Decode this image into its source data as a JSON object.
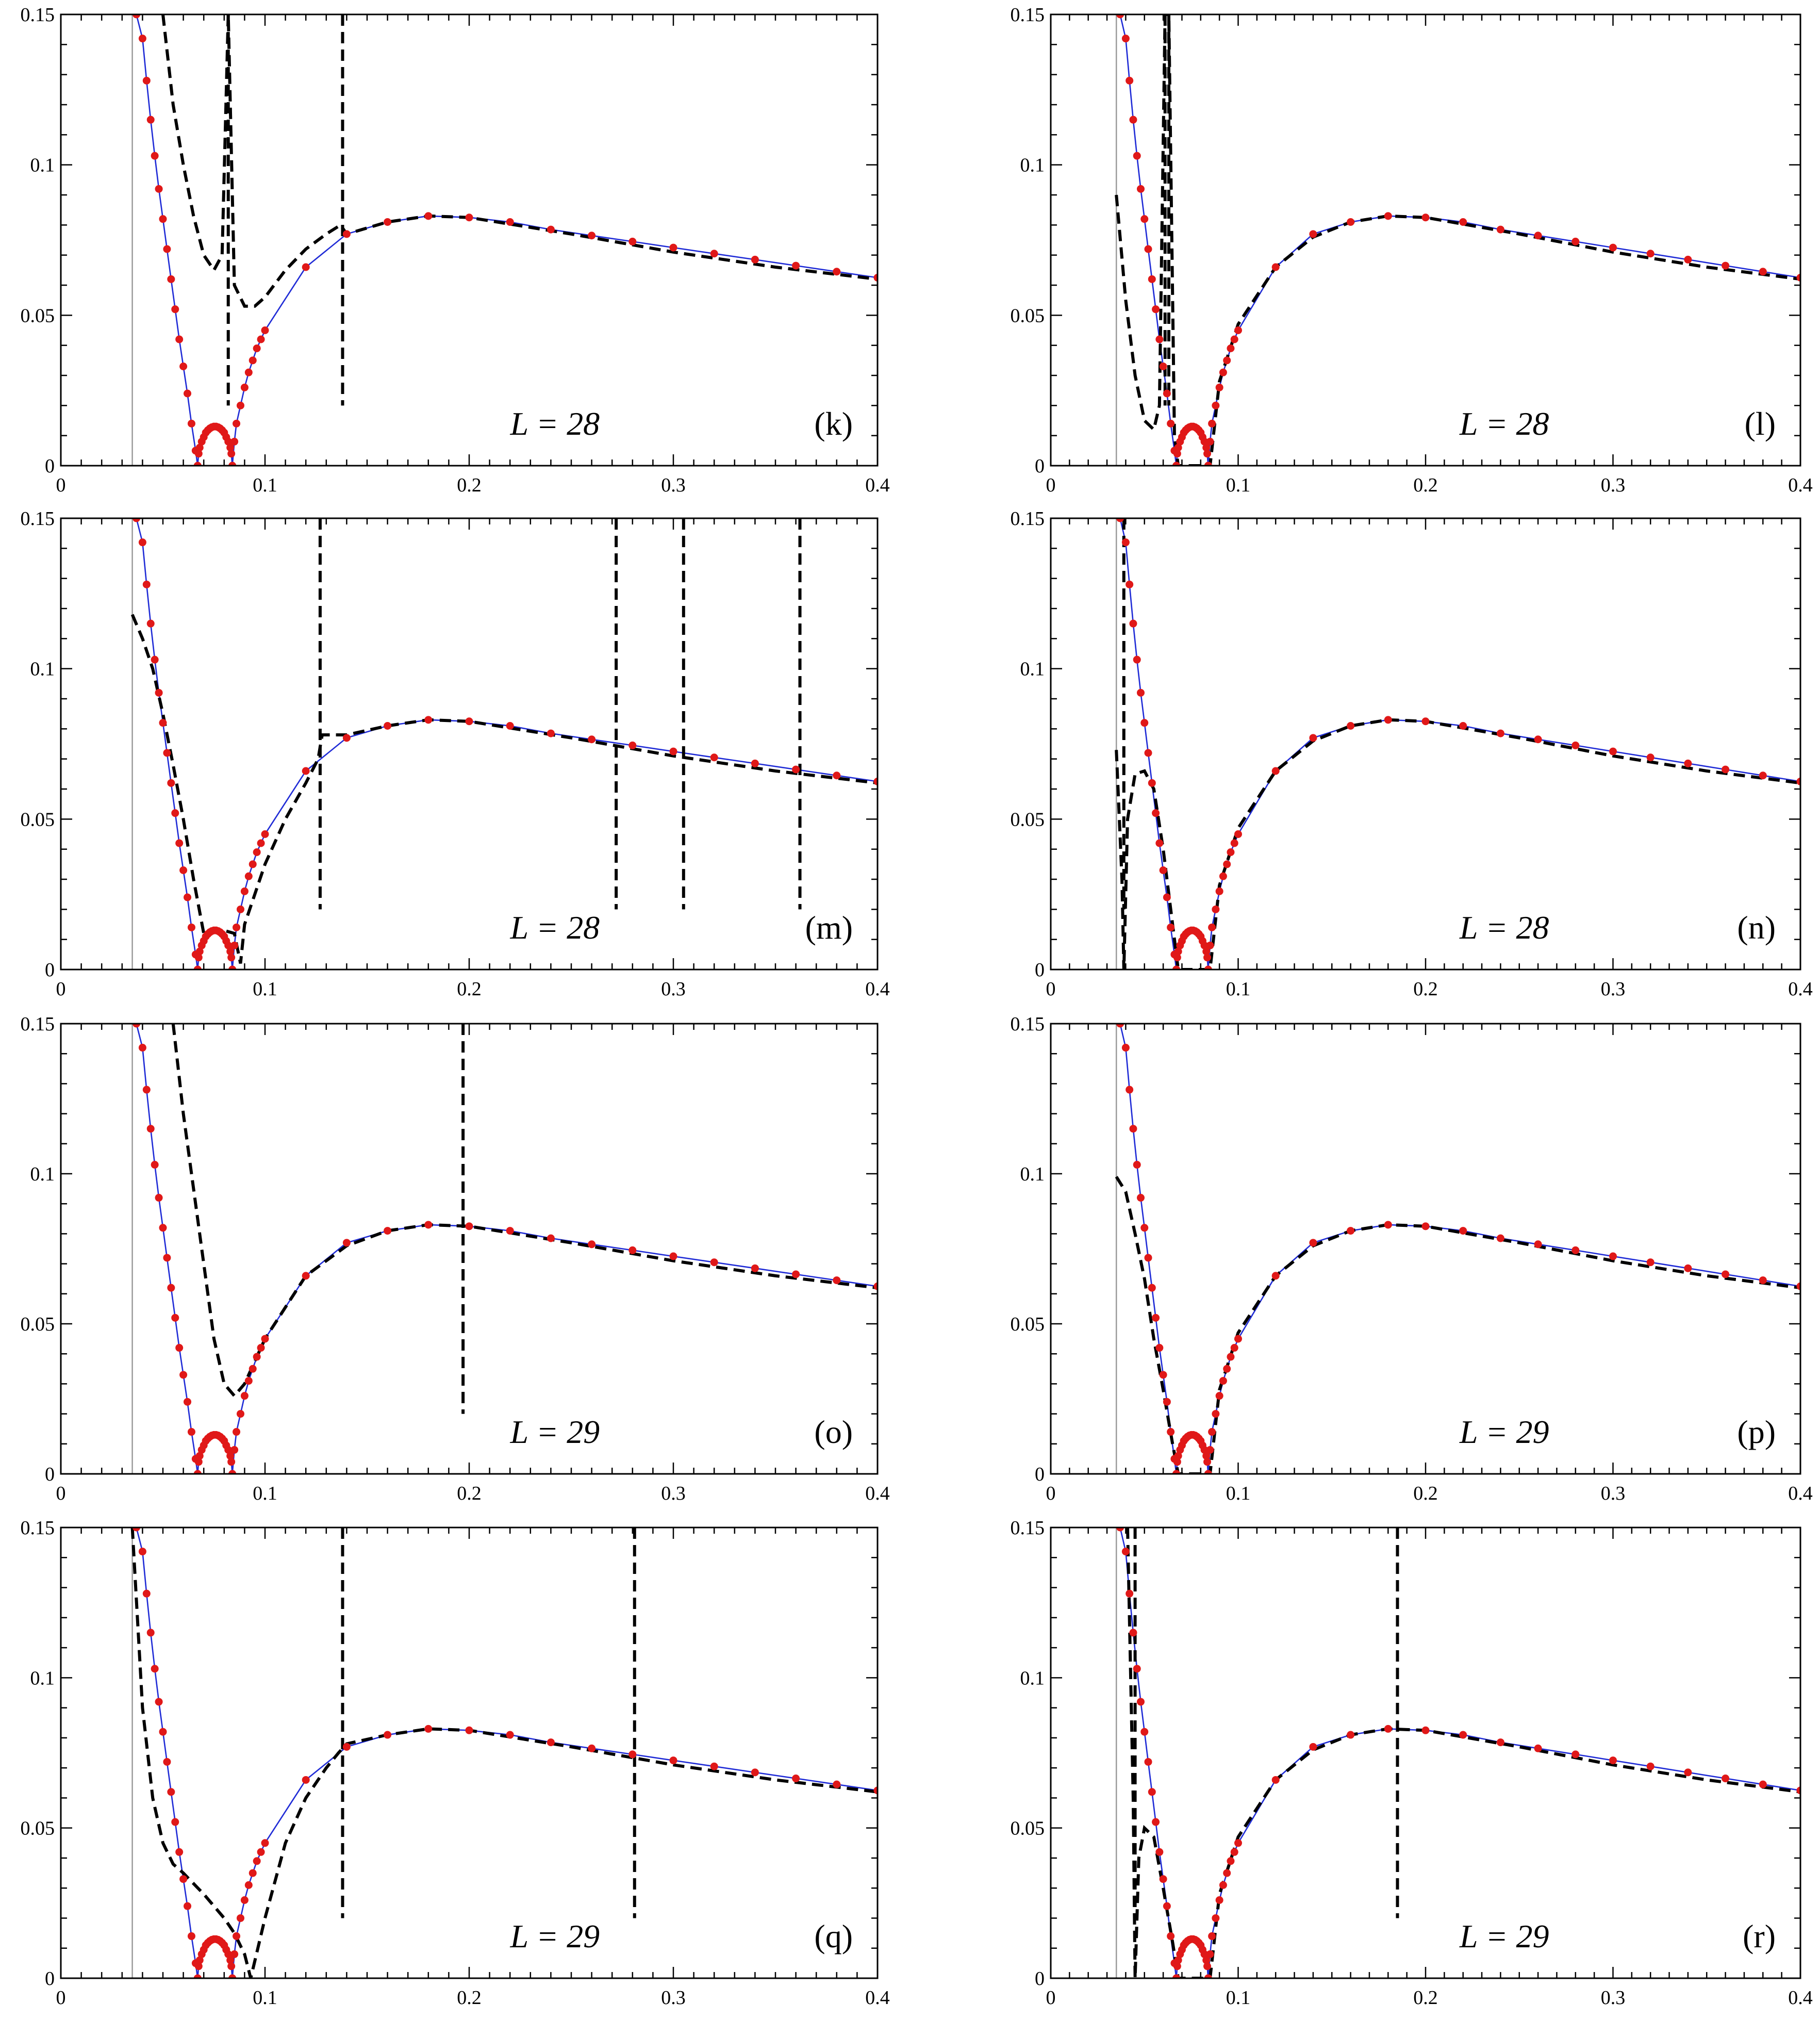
{
  "chart_data": [
    {
      "type": "line",
      "panel_label": "(k)",
      "annotation": "L = 28",
      "xlim": [
        0,
        0.4
      ],
      "ylim": [
        0,
        0.15
      ],
      "xticks": [
        "0",
        "0.1",
        "0.2",
        "0.3",
        "0.4"
      ],
      "yticks": [
        "0",
        "0.05",
        "0.1",
        "0.15"
      ],
      "reference_x": 0.035,
      "dashed_spikes": [
        0.082,
        0.138
      ],
      "dashed": [
        [
          0.05,
          0.15
        ],
        [
          0.055,
          0.12
        ],
        [
          0.06,
          0.1
        ],
        [
          0.065,
          0.083
        ],
        [
          0.07,
          0.07
        ],
        [
          0.075,
          0.065
        ],
        [
          0.079,
          0.07
        ],
        [
          0.082,
          0.15
        ],
        [
          0.085,
          0.06
        ],
        [
          0.09,
          0.053
        ],
        [
          0.095,
          0.053
        ],
        [
          0.1,
          0.056
        ],
        [
          0.11,
          0.065
        ],
        [
          0.12,
          0.072
        ],
        [
          0.13,
          0.077
        ],
        [
          0.137,
          0.08
        ],
        [
          0.14,
          0.077
        ],
        [
          0.16,
          0.081
        ],
        [
          0.18,
          0.083
        ],
        [
          0.2,
          0.0825
        ],
        [
          0.25,
          0.077
        ],
        [
          0.3,
          0.071
        ],
        [
          0.35,
          0.066
        ],
        [
          0.4,
          0.062
        ]
      ]
    },
    {
      "type": "line",
      "panel_label": "(l)",
      "annotation": "L = 28",
      "xlim": [
        0,
        0.4
      ],
      "ylim": [
        0,
        0.15
      ],
      "xticks": [
        "0",
        "0.1",
        "0.2",
        "0.3",
        "0.4"
      ],
      "yticks": [
        "0",
        "0.05",
        "0.1",
        "0.15"
      ],
      "reference_x": 0.035,
      "dashed_spikes": [
        0.061,
        0.063
      ],
      "dashed": [
        [
          0.035,
          0.09
        ],
        [
          0.04,
          0.055
        ],
        [
          0.045,
          0.03
        ],
        [
          0.05,
          0.015
        ],
        [
          0.055,
          0.012
        ],
        [
          0.058,
          0.02
        ],
        [
          0.061,
          0.15
        ],
        [
          0.063,
          0.15
        ],
        [
          0.066,
          0.01
        ],
        [
          0.068,
          0.0
        ],
        [
          0.085,
          0.0
        ],
        [
          0.09,
          0.028
        ],
        [
          0.1,
          0.047
        ],
        [
          0.12,
          0.066
        ],
        [
          0.14,
          0.076
        ],
        [
          0.16,
          0.081
        ],
        [
          0.18,
          0.083
        ],
        [
          0.2,
          0.0825
        ],
        [
          0.25,
          0.077
        ],
        [
          0.3,
          0.071
        ],
        [
          0.35,
          0.066
        ],
        [
          0.4,
          0.062
        ]
      ]
    },
    {
      "type": "line",
      "panel_label": "(m)",
      "annotation": "L = 28",
      "xlim": [
        0,
        0.4
      ],
      "ylim": [
        0,
        0.15
      ],
      "xticks": [
        "0",
        "0.1",
        "0.2",
        "0.3",
        "0.4"
      ],
      "yticks": [
        "0",
        "0.05",
        "0.1",
        "0.15"
      ],
      "reference_x": 0.035,
      "dashed_spikes": [
        0.127,
        0.272,
        0.305,
        0.362
      ],
      "dashed": [
        [
          0.035,
          0.118
        ],
        [
          0.04,
          0.11
        ],
        [
          0.045,
          0.1
        ],
        [
          0.05,
          0.085
        ],
        [
          0.055,
          0.068
        ],
        [
          0.06,
          0.05
        ],
        [
          0.065,
          0.03
        ],
        [
          0.07,
          0.012
        ],
        [
          0.075,
          0.013
        ],
        [
          0.08,
          0.013
        ],
        [
          0.085,
          0.012
        ],
        [
          0.088,
          0.002
        ],
        [
          0.09,
          0.015
        ],
        [
          0.1,
          0.035
        ],
        [
          0.11,
          0.05
        ],
        [
          0.12,
          0.062
        ],
        [
          0.126,
          0.07
        ],
        [
          0.128,
          0.078
        ],
        [
          0.14,
          0.078
        ],
        [
          0.16,
          0.081
        ],
        [
          0.18,
          0.083
        ],
        [
          0.2,
          0.0825
        ],
        [
          0.25,
          0.077
        ],
        [
          0.3,
          0.071
        ],
        [
          0.35,
          0.066
        ],
        [
          0.4,
          0.062
        ]
      ]
    },
    {
      "type": "line",
      "panel_label": "(n)",
      "annotation": "L = 28",
      "xlim": [
        0,
        0.4
      ],
      "ylim": [
        0,
        0.15
      ],
      "xticks": [
        "0",
        "0.1",
        "0.2",
        "0.3",
        "0.4"
      ],
      "yticks": [
        "0",
        "0.05",
        "0.1",
        "0.15"
      ],
      "reference_x": 0.035,
      "dashed_spikes": [
        0.039
      ],
      "dashed": [
        [
          0.035,
          0.073
        ],
        [
          0.038,
          0.03
        ],
        [
          0.039,
          0.0
        ],
        [
          0.041,
          0.05
        ],
        [
          0.045,
          0.065
        ],
        [
          0.05,
          0.066
        ],
        [
          0.055,
          0.06
        ],
        [
          0.06,
          0.04
        ],
        [
          0.065,
          0.015
        ],
        [
          0.068,
          0.0
        ],
        [
          0.085,
          0.0
        ],
        [
          0.09,
          0.028
        ],
        [
          0.1,
          0.047
        ],
        [
          0.12,
          0.066
        ],
        [
          0.14,
          0.076
        ],
        [
          0.16,
          0.081
        ],
        [
          0.18,
          0.083
        ],
        [
          0.2,
          0.0825
        ],
        [
          0.25,
          0.077
        ],
        [
          0.3,
          0.071
        ],
        [
          0.35,
          0.066
        ],
        [
          0.4,
          0.062
        ]
      ]
    },
    {
      "type": "line",
      "panel_label": "(o)",
      "annotation": "L = 29",
      "xlim": [
        0,
        0.4
      ],
      "ylim": [
        0,
        0.15
      ],
      "xticks": [
        "0",
        "0.1",
        "0.2",
        "0.3",
        "0.4"
      ],
      "yticks": [
        "0",
        "0.05",
        "0.1",
        "0.15"
      ],
      "reference_x": 0.035,
      "dashed_spikes": [
        0.197
      ],
      "dashed": [
        [
          0.055,
          0.15
        ],
        [
          0.06,
          0.12
        ],
        [
          0.065,
          0.095
        ],
        [
          0.07,
          0.07
        ],
        [
          0.075,
          0.045
        ],
        [
          0.08,
          0.03
        ],
        [
          0.085,
          0.026
        ],
        [
          0.09,
          0.03
        ],
        [
          0.1,
          0.045
        ],
        [
          0.12,
          0.066
        ],
        [
          0.14,
          0.076
        ],
        [
          0.16,
          0.081
        ],
        [
          0.18,
          0.083
        ],
        [
          0.2,
          0.0825
        ],
        [
          0.25,
          0.077
        ],
        [
          0.3,
          0.071
        ],
        [
          0.35,
          0.066
        ],
        [
          0.4,
          0.062
        ]
      ]
    },
    {
      "type": "line",
      "panel_label": "(p)",
      "annotation": "L = 29",
      "xlim": [
        0,
        0.4
      ],
      "ylim": [
        0,
        0.15
      ],
      "xticks": [
        "0",
        "0.1",
        "0.2",
        "0.3",
        "0.4"
      ],
      "yticks": [
        "0",
        "0.05",
        "0.1",
        "0.15"
      ],
      "reference_x": 0.035,
      "dashed_spikes": [],
      "dashed": [
        [
          0.035,
          0.099
        ],
        [
          0.04,
          0.094
        ],
        [
          0.045,
          0.08
        ],
        [
          0.05,
          0.065
        ],
        [
          0.055,
          0.045
        ],
        [
          0.06,
          0.028
        ],
        [
          0.065,
          0.01
        ],
        [
          0.068,
          0.0
        ],
        [
          0.085,
          0.0
        ],
        [
          0.09,
          0.028
        ],
        [
          0.1,
          0.047
        ],
        [
          0.12,
          0.066
        ],
        [
          0.14,
          0.076
        ],
        [
          0.16,
          0.081
        ],
        [
          0.18,
          0.083
        ],
        [
          0.2,
          0.0825
        ],
        [
          0.25,
          0.077
        ],
        [
          0.3,
          0.071
        ],
        [
          0.35,
          0.066
        ],
        [
          0.4,
          0.062
        ]
      ]
    },
    {
      "type": "line",
      "panel_label": "(q)",
      "annotation": "L = 29",
      "xlim": [
        0,
        0.4
      ],
      "ylim": [
        0,
        0.15
      ],
      "xticks": [
        "0",
        "0.1",
        "0.2",
        "0.3",
        "0.4"
      ],
      "yticks": [
        "0",
        "0.05",
        "0.1",
        "0.15"
      ],
      "reference_x": 0.035,
      "dashed_spikes": [
        0.138,
        0.281
      ],
      "dashed": [
        [
          0.035,
          0.15
        ],
        [
          0.04,
          0.09
        ],
        [
          0.045,
          0.06
        ],
        [
          0.05,
          0.045
        ],
        [
          0.055,
          0.038
        ],
        [
          0.06,
          0.035
        ],
        [
          0.07,
          0.028
        ],
        [
          0.08,
          0.02
        ],
        [
          0.085,
          0.015
        ],
        [
          0.09,
          0.008
        ],
        [
          0.093,
          0.0
        ],
        [
          0.1,
          0.02
        ],
        [
          0.11,
          0.045
        ],
        [
          0.12,
          0.06
        ],
        [
          0.13,
          0.07
        ],
        [
          0.136,
          0.075
        ],
        [
          0.14,
          0.078
        ],
        [
          0.16,
          0.081
        ],
        [
          0.18,
          0.083
        ],
        [
          0.2,
          0.0825
        ],
        [
          0.25,
          0.077
        ],
        [
          0.3,
          0.071
        ],
        [
          0.35,
          0.066
        ],
        [
          0.4,
          0.062
        ]
      ]
    },
    {
      "type": "line",
      "panel_label": "(r)",
      "annotation": "L = 29",
      "xlim": [
        0,
        0.4
      ],
      "ylim": [
        0,
        0.15
      ],
      "xticks": [
        "0",
        "0.1",
        "0.2",
        "0.3",
        "0.4"
      ],
      "yticks": [
        "0",
        "0.05",
        "0.1",
        "0.15"
      ],
      "reference_x": 0.035,
      "dashed_spikes": [
        0.045,
        0.185
      ],
      "dashed": [
        [
          0.041,
          0.15
        ],
        [
          0.044,
          0.06
        ],
        [
          0.045,
          0.0
        ],
        [
          0.047,
          0.04
        ],
        [
          0.05,
          0.05
        ],
        [
          0.055,
          0.047
        ],
        [
          0.06,
          0.03
        ],
        [
          0.065,
          0.012
        ],
        [
          0.068,
          0.0
        ],
        [
          0.085,
          0.0
        ],
        [
          0.09,
          0.028
        ],
        [
          0.1,
          0.047
        ],
        [
          0.12,
          0.066
        ],
        [
          0.14,
          0.076
        ],
        [
          0.16,
          0.081
        ],
        [
          0.18,
          0.083
        ],
        [
          0.2,
          0.0825
        ],
        [
          0.25,
          0.077
        ],
        [
          0.3,
          0.071
        ],
        [
          0.35,
          0.066
        ],
        [
          0.4,
          0.062
        ]
      ]
    }
  ],
  "shared_series": {
    "blue_with_red_points": {
      "color": "#1f2bd6",
      "point_color": "#e01818",
      "left_branch": [
        [
          0.037,
          0.15
        ],
        [
          0.04,
          0.142
        ],
        [
          0.042,
          0.128
        ],
        [
          0.044,
          0.115
        ],
        [
          0.046,
          0.103
        ],
        [
          0.048,
          0.092
        ],
        [
          0.05,
          0.082
        ],
        [
          0.052,
          0.072
        ],
        [
          0.054,
          0.062
        ],
        [
          0.056,
          0.052
        ],
        [
          0.058,
          0.042
        ],
        [
          0.06,
          0.033
        ],
        [
          0.062,
          0.024
        ],
        [
          0.064,
          0.014
        ],
        [
          0.066,
          0.005
        ],
        [
          0.067,
          0.0
        ]
      ],
      "inner_arc": [
        [
          0.067,
          0.0
        ],
        [
          0.0675,
          0.004
        ],
        [
          0.068,
          0.006
        ],
        [
          0.069,
          0.008
        ],
        [
          0.07,
          0.0095
        ],
        [
          0.071,
          0.011
        ],
        [
          0.072,
          0.0118
        ],
        [
          0.073,
          0.0124
        ],
        [
          0.074,
          0.0128
        ],
        [
          0.075,
          0.013
        ],
        [
          0.076,
          0.013
        ],
        [
          0.077,
          0.0128
        ],
        [
          0.078,
          0.0124
        ],
        [
          0.079,
          0.0118
        ],
        [
          0.08,
          0.011
        ],
        [
          0.081,
          0.0095
        ],
        [
          0.082,
          0.008
        ],
        [
          0.083,
          0.006
        ],
        [
          0.0835,
          0.004
        ],
        [
          0.084,
          0.0
        ]
      ],
      "right_branch": [
        [
          0.084,
          0.0
        ],
        [
          0.085,
          0.008
        ],
        [
          0.086,
          0.014
        ],
        [
          0.088,
          0.02
        ],
        [
          0.09,
          0.026
        ],
        [
          0.092,
          0.031
        ],
        [
          0.094,
          0.035
        ],
        [
          0.096,
          0.039
        ],
        [
          0.098,
          0.042
        ],
        [
          0.1,
          0.045
        ],
        [
          0.12,
          0.066
        ],
        [
          0.14,
          0.077
        ],
        [
          0.16,
          0.081
        ],
        [
          0.18,
          0.083
        ],
        [
          0.2,
          0.0825
        ],
        [
          0.22,
          0.081
        ],
        [
          0.24,
          0.0785
        ],
        [
          0.26,
          0.0765
        ],
        [
          0.28,
          0.0745
        ],
        [
          0.3,
          0.0725
        ],
        [
          0.32,
          0.0705
        ],
        [
          0.34,
          0.0685
        ],
        [
          0.36,
          0.0665
        ],
        [
          0.38,
          0.0645
        ],
        [
          0.4,
          0.0625
        ]
      ]
    }
  }
}
